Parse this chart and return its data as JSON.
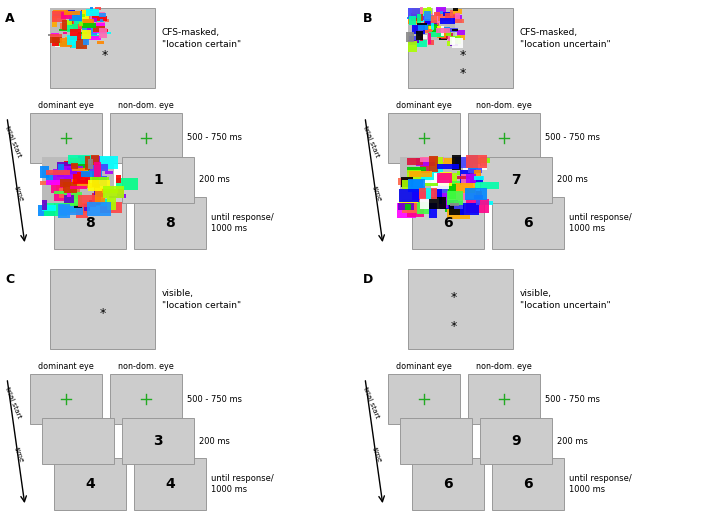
{
  "panel_labels": [
    "A",
    "B",
    "C",
    "D"
  ],
  "panel_titles": [
    "CFS-masked,\n\"location certain\"",
    "CFS-masked,\n\"location uncertain\"",
    "visible,\n\"location certain\"",
    "visible,\n\"location uncertain\""
  ],
  "timing_labels": [
    "500 - 750 ms",
    "200 ms",
    "until response/\n1000 ms"
  ],
  "eye_labels": [
    "dominant eye",
    "non-dom. eye"
  ],
  "panel_numbers": [
    {
      "mid_right": "1",
      "bot_left": "8",
      "bot_right": "8"
    },
    {
      "mid_right": "7",
      "bot_left": "6",
      "bot_right": "6"
    },
    {
      "mid_right": "3",
      "bot_left": "4",
      "bot_right": "4"
    },
    {
      "mid_right": "9",
      "bot_left": "6",
      "bot_right": "6"
    }
  ],
  "bg_color": "white",
  "box_color": "#cccccc",
  "box_edge": "#999999",
  "green_cross": "#22aa22",
  "text_color": "black"
}
